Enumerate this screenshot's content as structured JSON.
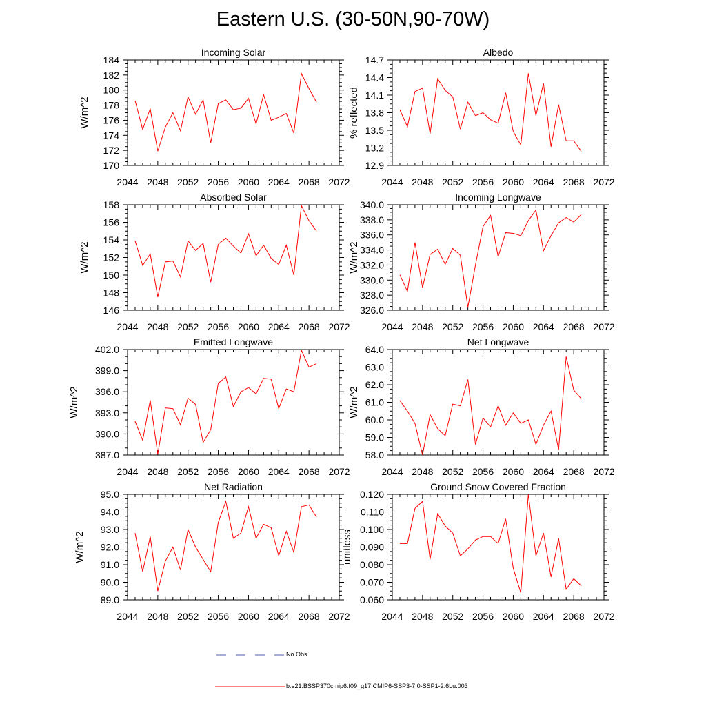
{
  "title": "Eastern U.S. (30-50N,90-70W)",
  "colors": {
    "series": "#ff0000",
    "obs": "#4b5fae",
    "axis": "#000000"
  },
  "legend": {
    "obs_label": "No Obs",
    "model_label": "b.e21.BSSP370cmip6.f09_g17.CMIP6-SSP3-7.0-SSP1-2.6Lu.003"
  },
  "chart_data": [
    {
      "type": "line",
      "title": "Incoming Solar",
      "ylabel": "W/m^2",
      "xlim": [
        2044,
        2072
      ],
      "ylim": [
        170,
        184
      ],
      "xticks": [
        2044,
        2048,
        2052,
        2056,
        2060,
        2064,
        2068,
        2072
      ],
      "yticks": [
        "170",
        "172",
        "174",
        "176",
        "178",
        "180",
        "182",
        "184"
      ],
      "x": [
        2045,
        2046,
        2047,
        2048,
        2049,
        2050,
        2051,
        2052,
        2053,
        2054,
        2055,
        2056,
        2057,
        2058,
        2059,
        2060,
        2061,
        2062,
        2063,
        2064,
        2065,
        2066,
        2067,
        2068,
        2069
      ],
      "values": [
        178.6,
        174.8,
        177.5,
        171.9,
        175.1,
        177.0,
        174.6,
        179.1,
        176.8,
        178.7,
        173.0,
        178.2,
        178.7,
        177.4,
        177.6,
        178.9,
        175.5,
        179.4,
        176.0,
        176.4,
        176.9,
        174.3,
        182.2,
        180.2,
        178.4
      ]
    },
    {
      "type": "line",
      "title": "Albedo",
      "ylabel": "% reflected",
      "xlim": [
        2044,
        2072
      ],
      "ylim": [
        12.9,
        14.7
      ],
      "xticks": [
        2044,
        2048,
        2052,
        2056,
        2060,
        2064,
        2068,
        2072
      ],
      "yticks": [
        "12.9",
        "13.2",
        "13.5",
        "13.8",
        "14.1",
        "14.4",
        "14.7"
      ],
      "x": [
        2045,
        2046,
        2047,
        2048,
        2049,
        2050,
        2051,
        2052,
        2053,
        2054,
        2055,
        2056,
        2057,
        2058,
        2059,
        2060,
        2061,
        2062,
        2063,
        2064,
        2065,
        2066,
        2067,
        2068,
        2069
      ],
      "values": [
        13.85,
        13.56,
        14.16,
        14.22,
        13.44,
        14.38,
        14.18,
        14.07,
        13.52,
        13.98,
        13.75,
        13.8,
        13.68,
        13.62,
        14.14,
        13.48,
        13.25,
        14.47,
        13.75,
        14.3,
        13.22,
        13.94,
        13.32,
        13.32,
        13.14
      ]
    },
    {
      "type": "line",
      "title": "Absorbed Solar",
      "ylabel": "W/m^2",
      "xlim": [
        2044,
        2072
      ],
      "ylim": [
        146,
        158
      ],
      "xticks": [
        2044,
        2048,
        2052,
        2056,
        2060,
        2064,
        2068,
        2072
      ],
      "yticks": [
        "146",
        "148",
        "150",
        "152",
        "154",
        "156",
        "158"
      ],
      "x": [
        2045,
        2046,
        2047,
        2048,
        2049,
        2050,
        2051,
        2052,
        2053,
        2054,
        2055,
        2056,
        2057,
        2058,
        2059,
        2060,
        2061,
        2062,
        2063,
        2064,
        2065,
        2066,
        2067,
        2068,
        2069
      ],
      "values": [
        153.9,
        151.1,
        152.4,
        147.5,
        151.5,
        151.6,
        149.8,
        153.9,
        152.8,
        153.6,
        149.2,
        153.5,
        154.2,
        153.3,
        152.5,
        154.7,
        152.2,
        153.4,
        151.9,
        151.2,
        153.4,
        150.0,
        157.9,
        156.2,
        155.0
      ]
    },
    {
      "type": "line",
      "title": "Incoming Longwave",
      "ylabel": "W/m^2",
      "xlim": [
        2044,
        2072
      ],
      "ylim": [
        326,
        340
      ],
      "xticks": [
        2044,
        2048,
        2052,
        2056,
        2060,
        2064,
        2068,
        2072
      ],
      "yticks": [
        "326.0",
        "328.0",
        "330.0",
        "332.0",
        "334.0",
        "336.0",
        "338.0",
        "340.0"
      ],
      "x": [
        2045,
        2046,
        2047,
        2048,
        2049,
        2050,
        2051,
        2052,
        2053,
        2054,
        2055,
        2056,
        2057,
        2058,
        2059,
        2060,
        2061,
        2062,
        2063,
        2064,
        2065,
        2066,
        2067,
        2068,
        2069
      ],
      "values": [
        330.7,
        328.5,
        335.0,
        329.0,
        333.4,
        334.1,
        332.1,
        334.2,
        333.3,
        326.4,
        332.0,
        337.1,
        338.6,
        333.1,
        336.3,
        336.2,
        335.9,
        337.9,
        339.3,
        333.9,
        335.9,
        337.6,
        338.3,
        337.7,
        338.7
      ]
    },
    {
      "type": "line",
      "title": "Emitted Longwave",
      "ylabel": "W/m^2",
      "xlim": [
        2044,
        2072
      ],
      "ylim": [
        387,
        402
      ],
      "xticks": [
        2044,
        2048,
        2052,
        2056,
        2060,
        2064,
        2068,
        2072
      ],
      "yticks": [
        "387.0",
        "390.0",
        "393.0",
        "396.0",
        "399.0",
        "402.0"
      ],
      "x": [
        2045,
        2046,
        2047,
        2048,
        2049,
        2050,
        2051,
        2052,
        2053,
        2054,
        2055,
        2056,
        2057,
        2058,
        2059,
        2060,
        2061,
        2062,
        2063,
        2064,
        2065,
        2066,
        2067,
        2068,
        2069
      ],
      "values": [
        391.8,
        389.1,
        394.8,
        387.1,
        393.7,
        393.6,
        391.3,
        395.1,
        394.2,
        388.8,
        390.6,
        397.2,
        398.1,
        393.9,
        396.0,
        396.6,
        395.7,
        397.9,
        397.8,
        393.6,
        396.4,
        396.0,
        401.9,
        399.5,
        400.0
      ]
    },
    {
      "type": "line",
      "title": "Net Longwave",
      "ylabel": "W/m^2",
      "xlim": [
        2044,
        2072
      ],
      "ylim": [
        58,
        64
      ],
      "xticks": [
        2044,
        2048,
        2052,
        2056,
        2060,
        2064,
        2068,
        2072
      ],
      "yticks": [
        "58.0",
        "59.0",
        "60.0",
        "61.0",
        "62.0",
        "63.0",
        "64.0"
      ],
      "x": [
        2045,
        2046,
        2047,
        2048,
        2049,
        2050,
        2051,
        2052,
        2053,
        2054,
        2055,
        2056,
        2057,
        2058,
        2059,
        2060,
        2061,
        2062,
        2063,
        2064,
        2065,
        2066,
        2067,
        2068,
        2069
      ],
      "values": [
        61.1,
        60.5,
        59.8,
        58.0,
        60.3,
        59.5,
        59.1,
        60.9,
        60.8,
        62.3,
        58.6,
        60.1,
        59.6,
        60.8,
        59.7,
        60.4,
        59.8,
        60.0,
        58.6,
        59.7,
        60.5,
        58.3,
        63.6,
        61.7,
        61.2
      ]
    },
    {
      "type": "line",
      "title": "Net Radiation",
      "ylabel": "W/m^2",
      "xlim": [
        2044,
        2072
      ],
      "ylim": [
        89,
        95
      ],
      "xticks": [
        2044,
        2048,
        2052,
        2056,
        2060,
        2064,
        2068,
        2072
      ],
      "yticks": [
        "89.0",
        "90.0",
        "91.0",
        "92.0",
        "93.0",
        "94.0",
        "95.0"
      ],
      "x": [
        2045,
        2046,
        2047,
        2048,
        2049,
        2050,
        2051,
        2052,
        2053,
        2054,
        2055,
        2056,
        2057,
        2058,
        2059,
        2060,
        2061,
        2062,
        2063,
        2064,
        2065,
        2066,
        2067,
        2068,
        2069
      ],
      "values": [
        92.8,
        90.6,
        92.6,
        89.5,
        91.2,
        92.0,
        90.7,
        93.0,
        92.0,
        91.3,
        90.6,
        93.4,
        94.6,
        92.5,
        92.8,
        94.3,
        92.5,
        93.3,
        93.1,
        91.5,
        92.9,
        91.7,
        94.3,
        94.4,
        93.7
      ]
    },
    {
      "type": "line",
      "title": "Ground Snow Covered Fraction",
      "ylabel": "unitless",
      "xlim": [
        2044,
        2072
      ],
      "ylim": [
        0.06,
        0.12
      ],
      "xticks": [
        2044,
        2048,
        2052,
        2056,
        2060,
        2064,
        2068,
        2072
      ],
      "yticks": [
        "0.060",
        "0.070",
        "0.080",
        "0.090",
        "0.100",
        "0.110",
        "0.120"
      ],
      "x": [
        2045,
        2046,
        2047,
        2048,
        2049,
        2050,
        2051,
        2052,
        2053,
        2054,
        2055,
        2056,
        2057,
        2058,
        2059,
        2060,
        2061,
        2062,
        2063,
        2064,
        2065,
        2066,
        2067,
        2068,
        2069
      ],
      "values": [
        0.092,
        0.092,
        0.112,
        0.116,
        0.083,
        0.109,
        0.102,
        0.098,
        0.085,
        0.089,
        0.094,
        0.096,
        0.096,
        0.092,
        0.106,
        0.078,
        0.064,
        0.12,
        0.085,
        0.098,
        0.073,
        0.095,
        0.066,
        0.072,
        0.068
      ]
    }
  ]
}
